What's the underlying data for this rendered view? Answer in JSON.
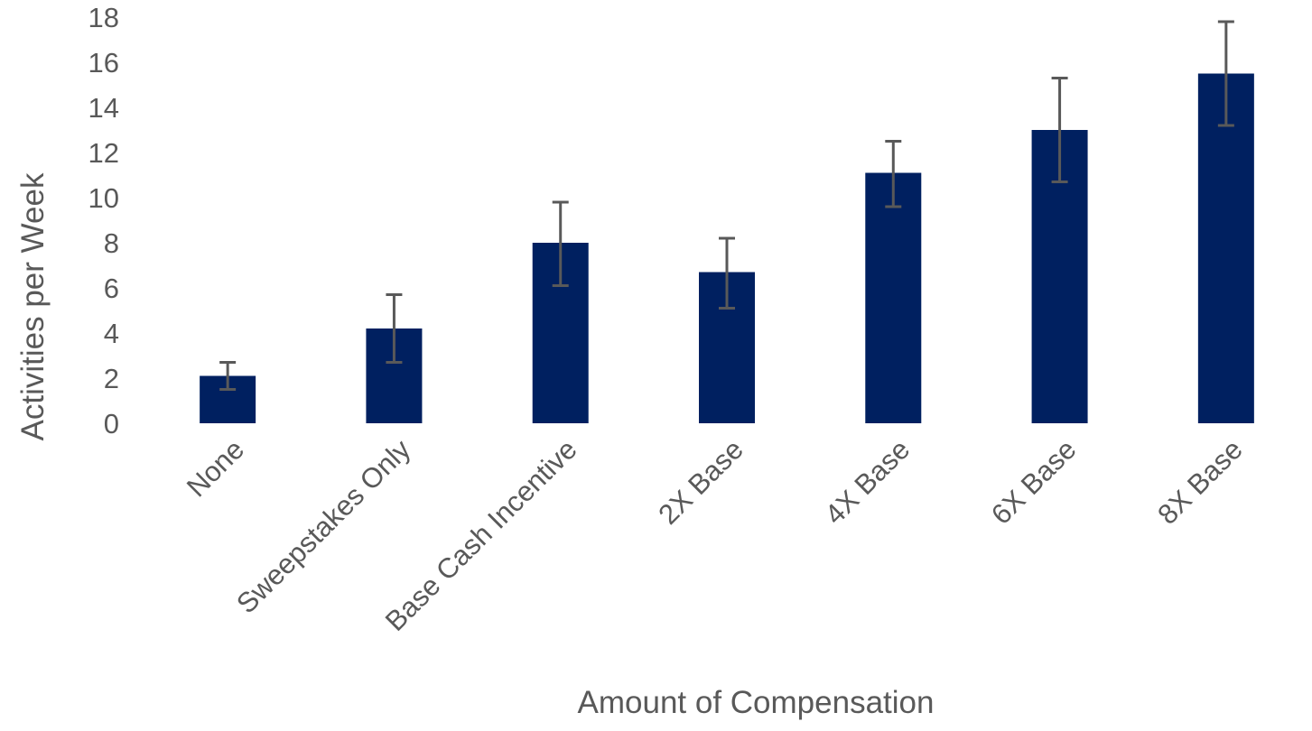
{
  "chart_data": {
    "type": "bar",
    "title": "",
    "xlabel": "Amount of Compensation",
    "ylabel": "Activities per Week",
    "categories": [
      "None",
      "Sweepstakes Only",
      "Base Cash Incentive",
      "2X Base",
      "4X Base",
      "6X Base",
      "8X Base"
    ],
    "values": [
      2.1,
      4.2,
      8.0,
      6.7,
      11.1,
      13.0,
      15.5
    ],
    "error_low": [
      1.5,
      2.7,
      6.1,
      5.1,
      9.6,
      10.7,
      13.2
    ],
    "error_high": [
      2.7,
      5.7,
      9.8,
      8.2,
      12.5,
      15.3,
      17.8
    ],
    "ylim": [
      0,
      18
    ],
    "yticks": [
      0,
      2,
      4,
      6,
      8,
      10,
      12,
      14,
      16,
      18
    ],
    "grid": false,
    "legend": "none",
    "colors": {
      "bar": "#002060",
      "error_bar": "#595959",
      "text": "#595959"
    }
  }
}
